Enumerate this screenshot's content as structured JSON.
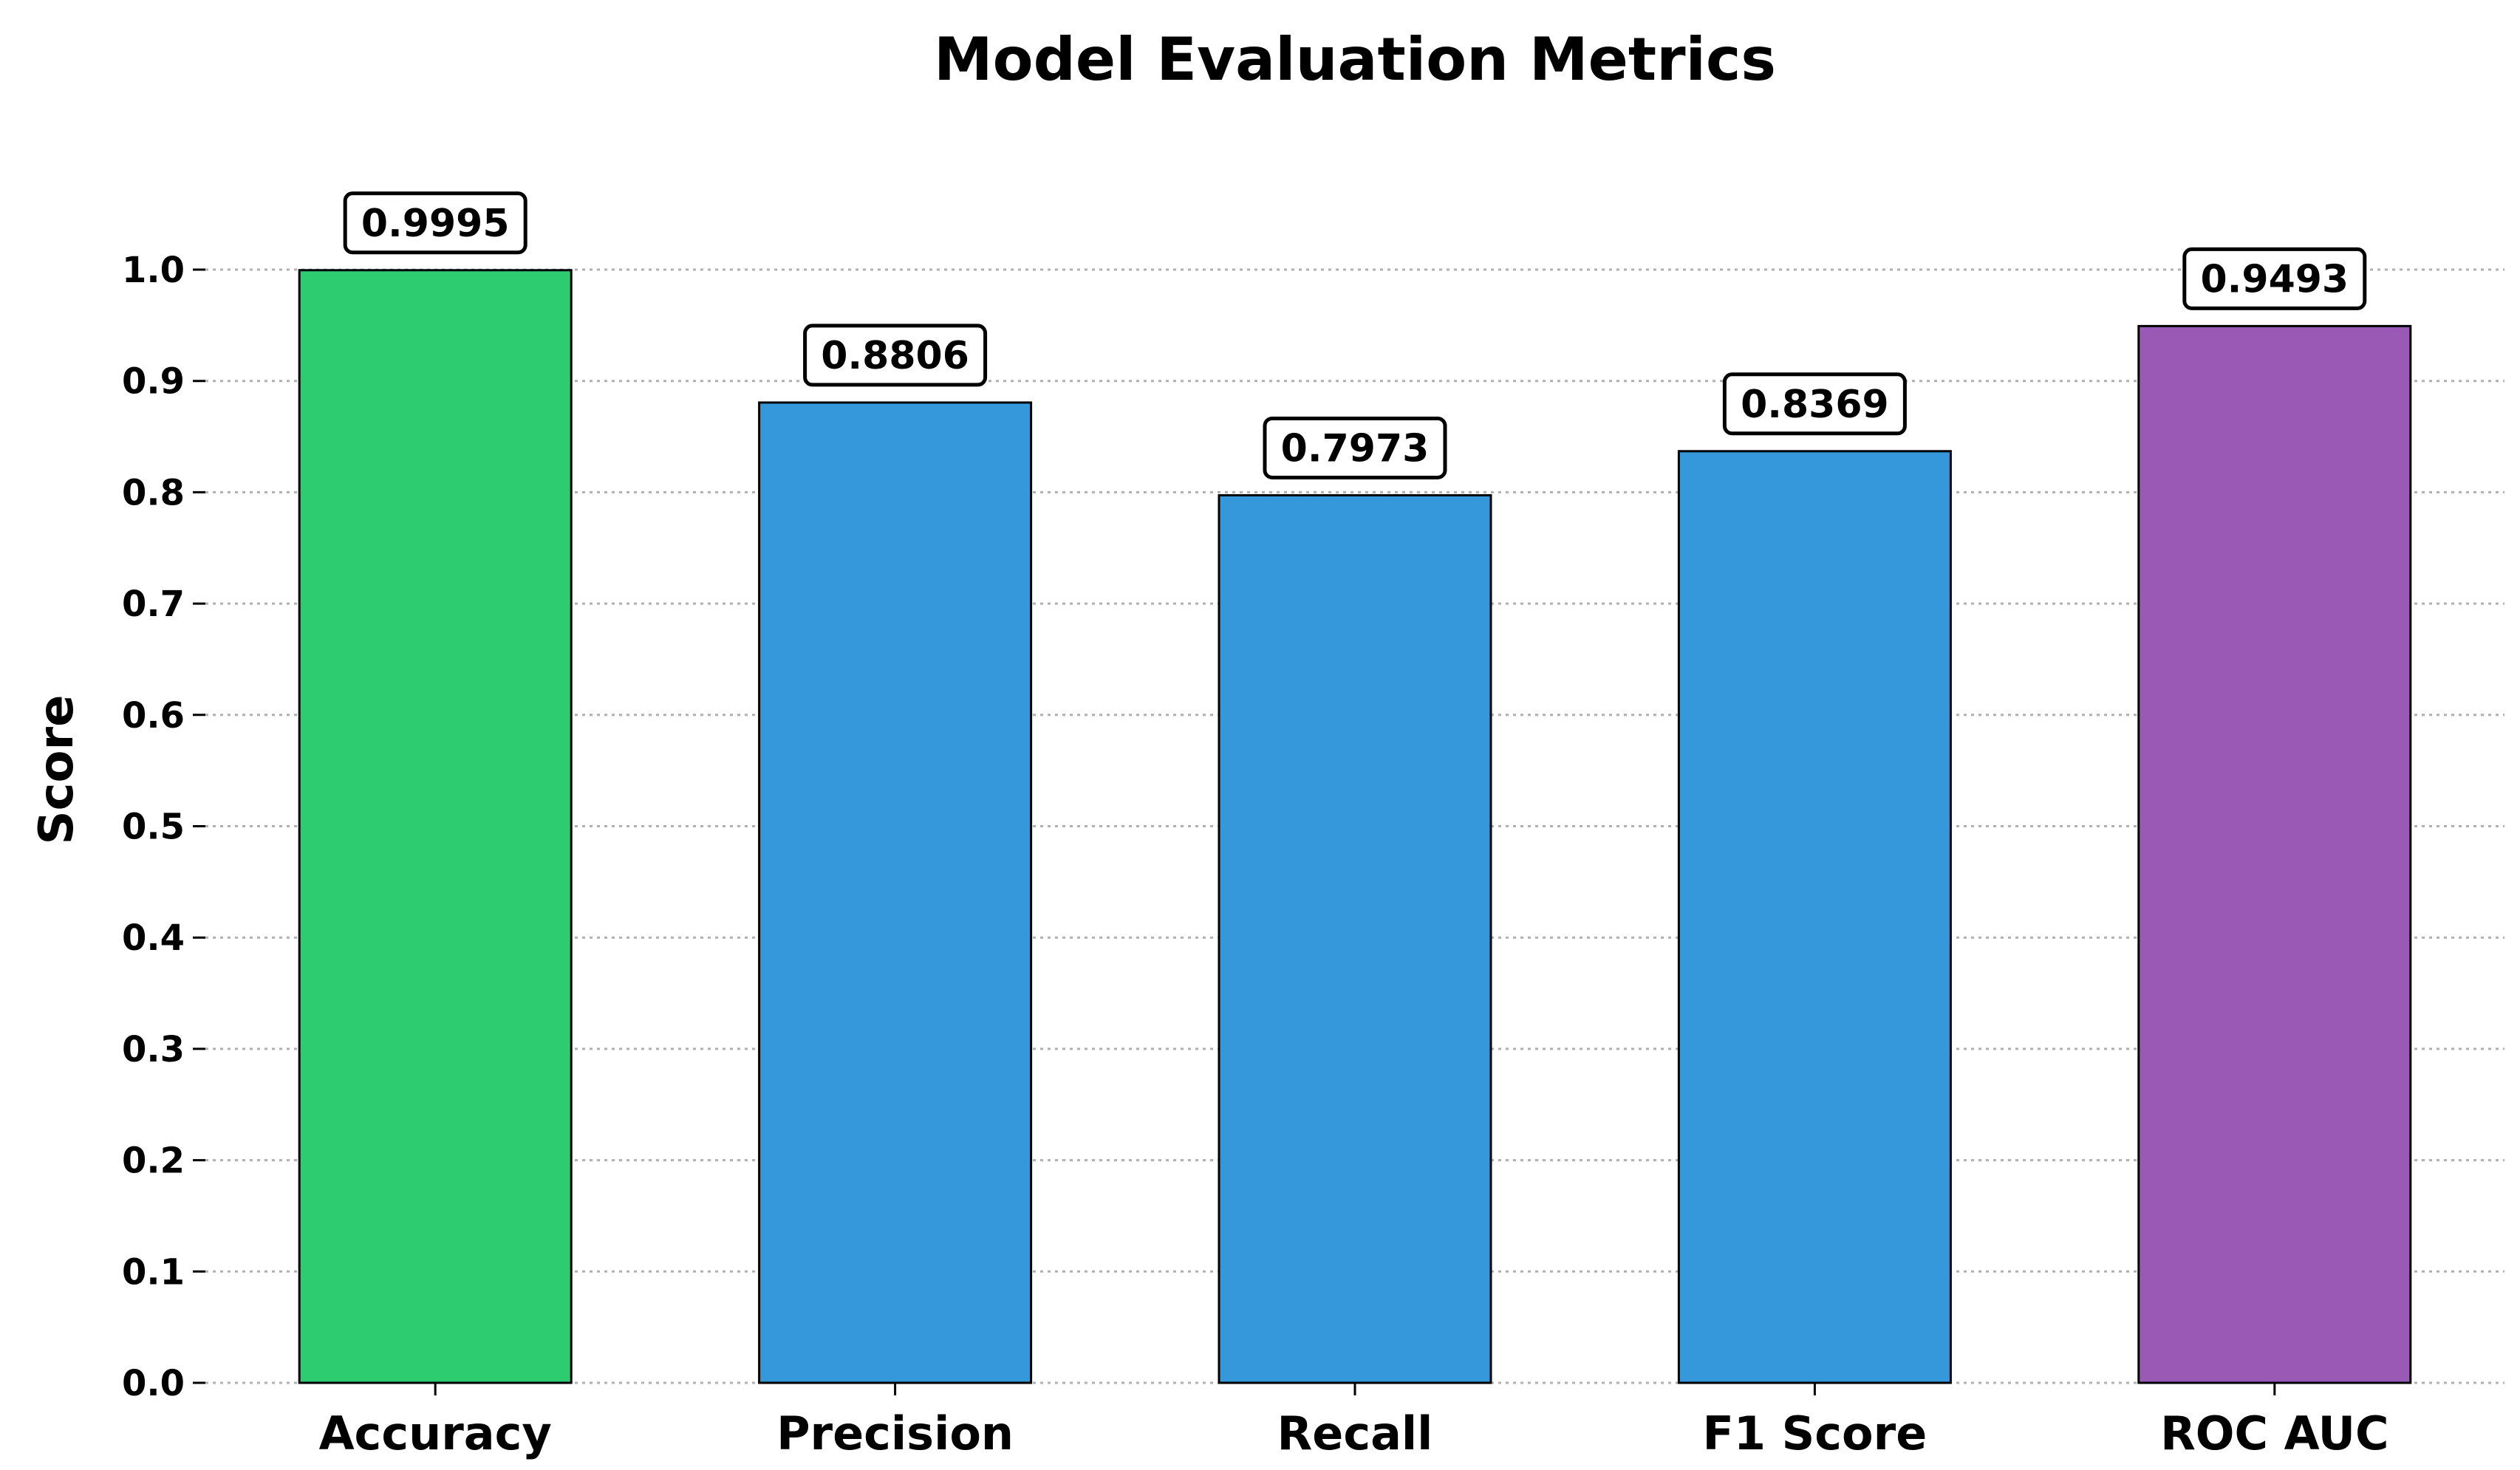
{
  "chart_data": {
    "type": "bar",
    "title": "Model Evaluation Metrics",
    "xlabel": "",
    "ylabel": "Score",
    "categories": [
      "Accuracy",
      "Precision",
      "Recall",
      "F1 Score",
      "ROC AUC"
    ],
    "values": [
      0.9995,
      0.8806,
      0.7973,
      0.8369,
      0.9493
    ],
    "value_labels": [
      "0.9995",
      "0.8806",
      "0.7973",
      "0.8369",
      "0.9493"
    ],
    "colors": [
      "#2ecc71",
      "#3498db",
      "#3498db",
      "#3498db",
      "#9b59b6"
    ],
    "ylim": [
      0,
      1.0
    ],
    "yticks": [
      0.0,
      0.1,
      0.2,
      0.3,
      0.4,
      0.5,
      0.6,
      0.7,
      0.8,
      0.9,
      1.0
    ],
    "ytick_labels": [
      "0.0",
      "0.1",
      "0.2",
      "0.3",
      "0.4",
      "0.5",
      "0.6",
      "0.7",
      "0.8",
      "0.9",
      "1.0"
    ],
    "grid": true,
    "legend": "none"
  }
}
